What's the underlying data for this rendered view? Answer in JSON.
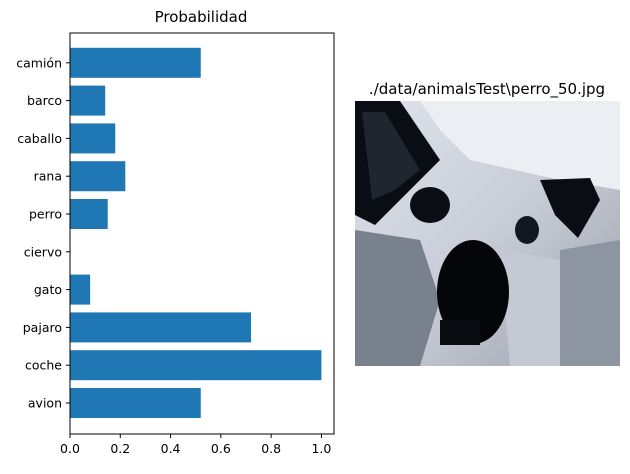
{
  "chart_data": {
    "type": "bar",
    "orientation": "horizontal",
    "title": "Probabilidad",
    "categories": [
      "avion",
      "coche",
      "pajaro",
      "gato",
      "ciervo",
      "perro",
      "rana",
      "caballo",
      "barco",
      "camión"
    ],
    "values": [
      0.52,
      1.0,
      0.72,
      0.08,
      0.0,
      0.15,
      0.22,
      0.18,
      0.14,
      0.52
    ],
    "xlim": [
      0,
      1.05
    ],
    "xticks": [
      "0.0",
      "0.2",
      "0.4",
      "0.6",
      "0.8",
      "1.0"
    ],
    "xtick_values": [
      0.0,
      0.2,
      0.4,
      0.6,
      0.8,
      1.0
    ],
    "bar_color": "#1f77b4",
    "grid": false
  },
  "image_panel": {
    "title": "./data/animalsTest\\perro_50.jpg",
    "description_colors": [
      "#000000",
      "#ffffff"
    ]
  }
}
